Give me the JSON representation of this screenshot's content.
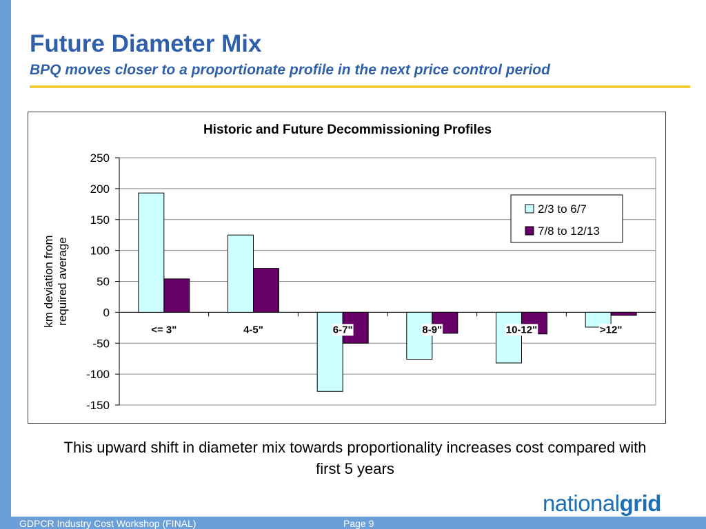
{
  "slide": {
    "title": "Future Diameter Mix",
    "subtitle": "BPQ moves closer to a proportionate profile in the next price control period",
    "caption": "This upward shift in diameter mix towards proportionality increases cost compared with first 5 years",
    "footer_left": "GDPCR Industry Cost Workshop (FINAL)",
    "page": "Page 9",
    "logo_light": "national",
    "logo_bold": "grid"
  },
  "colors": {
    "accent": "#2f5fa8",
    "side_bar": "#6a9fd8",
    "title_rule": "#f2cd3a",
    "logo": "#1f6fb4"
  },
  "chart_data": {
    "type": "bar",
    "title": "Historic and Future Decommissioning Profiles",
    "xlabel": "",
    "ylabel": "km deviation from required average",
    "categories": [
      "<= 3\"",
      "4-5\"",
      "6-7\"",
      "8-9\"",
      "10-12\"",
      ">12\""
    ],
    "series": [
      {
        "name": "2/3 to 6/7",
        "color": "#ccffff",
        "values": [
          193,
          125,
          -128,
          -76,
          -82,
          -24
        ]
      },
      {
        "name": "7/8 to 12/13",
        "color": "#660066",
        "values": [
          54,
          71,
          -50,
          -34,
          -35,
          -5
        ]
      }
    ],
    "ylim": [
      -150,
      250
    ],
    "yticks": [
      -150,
      -100,
      -50,
      0,
      50,
      100,
      150,
      200,
      250
    ],
    "grid": true,
    "legend": "right"
  }
}
